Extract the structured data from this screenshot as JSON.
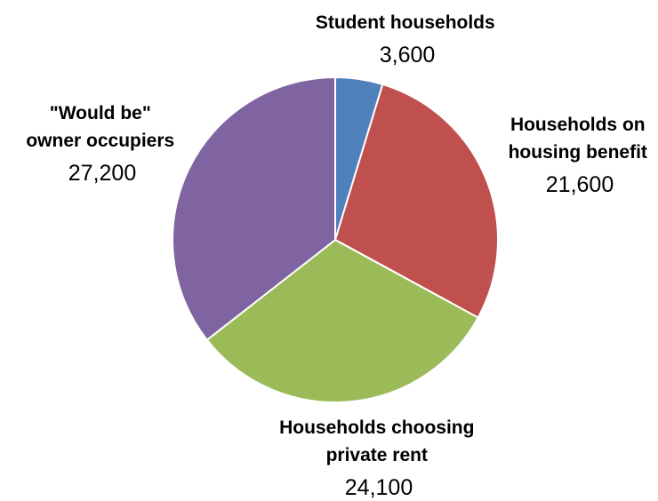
{
  "chart_data": {
    "type": "pie",
    "title": "",
    "start_angle_deg": 0,
    "direction": "clockwise",
    "legend": "none",
    "slices": [
      {
        "label_lines": [
          "Student households"
        ],
        "value": 3600,
        "value_text": "3,600",
        "color": "#4F81BD"
      },
      {
        "label_lines": [
          "Households on",
          "housing benefit"
        ],
        "value": 21600,
        "value_text": "21,600",
        "color": "#C0504D"
      },
      {
        "label_lines": [
          "Households choosing",
          "private rent"
        ],
        "value": 24100,
        "value_text": "24,100",
        "color": "#9BBB59"
      },
      {
        "label_lines": [
          "\"Would be\"",
          "owner occupiers"
        ],
        "value": 27200,
        "value_text": "27,200",
        "color": "#8064A2"
      }
    ]
  }
}
